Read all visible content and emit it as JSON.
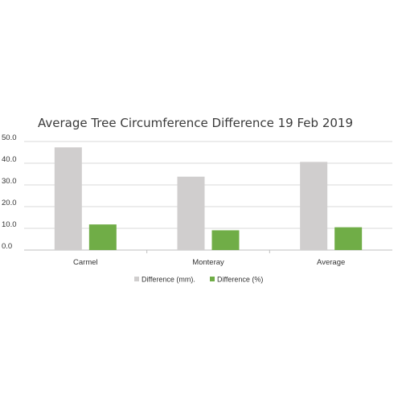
{
  "chart_data": {
    "type": "bar",
    "title": "Average Tree Circumference Difference 19 Feb 2019",
    "xlabel": "",
    "ylabel": "",
    "categories": [
      "Carmel",
      "Monteray",
      "Average"
    ],
    "series": [
      {
        "name": "Difference (mm).",
        "color": "#d0cece",
        "values": [
          47.3,
          33.8,
          40.6
        ]
      },
      {
        "name": "Difference (%)",
        "color": "#70ad47",
        "values": [
          11.8,
          9.1,
          10.5
        ]
      }
    ],
    "y_ticks": [
      "0.0",
      "10.0",
      "20.0",
      "30.0",
      "40.0",
      "50.0"
    ],
    "ylim": [
      0,
      50
    ],
    "grid": true,
    "legend_position": "bottom"
  }
}
